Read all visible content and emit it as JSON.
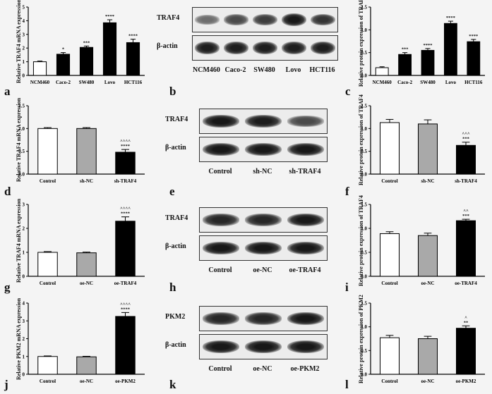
{
  "panel_letters": [
    "a",
    "b",
    "c",
    "d",
    "e",
    "f",
    "g",
    "h",
    "i",
    "j",
    "k",
    "l"
  ],
  "chart_data": [
    {
      "id": "a",
      "type": "bar",
      "ylabel": "Relative TRAF4 mRNA expression",
      "categories": [
        "NCM460",
        "Caco-2",
        "SW480",
        "Lovo",
        "HCT116"
      ],
      "values": [
        1.0,
        1.55,
        2.05,
        3.85,
        2.4
      ],
      "errors": [
        0.05,
        0.12,
        0.1,
        0.22,
        0.25
      ],
      "colors": [
        "#ffffff",
        "#000000",
        "#000000",
        "#000000",
        "#000000"
      ],
      "annotations": [
        "",
        "*",
        "***",
        "****",
        "****"
      ],
      "ylim": [
        0,
        5
      ],
      "yticks": [
        0,
        1,
        2,
        3,
        4,
        5
      ]
    },
    {
      "id": "c",
      "type": "bar",
      "ylabel": "Relative protein expression of TRAF4",
      "categories": [
        "NCM460",
        "Caco-2",
        "SW480",
        "Lovo",
        "HCT116"
      ],
      "values": [
        0.17,
        0.46,
        0.55,
        1.14,
        0.74
      ],
      "errors": [
        0.02,
        0.04,
        0.04,
        0.05,
        0.05
      ],
      "colors": [
        "#ffffff",
        "#000000",
        "#000000",
        "#000000",
        "#000000"
      ],
      "annotations": [
        "",
        "***",
        "****",
        "****",
        "****"
      ],
      "ylim": [
        0,
        1.5
      ],
      "yticks": [
        "0.0",
        "0.5",
        "1.0",
        "1.5"
      ]
    },
    {
      "id": "d",
      "type": "bar",
      "ylabel": "Relative TRAF4 mRNA expression",
      "categories": [
        "Control",
        "sh-NC",
        "sh-TRAF4"
      ],
      "values": [
        1.0,
        1.0,
        0.48
      ],
      "errors": [
        0.02,
        0.02,
        0.06
      ],
      "colors": [
        "#ffffff",
        "#a9a9a9",
        "#000000"
      ],
      "annotations": [
        "",
        "",
        "^^^^\n****"
      ],
      "ylim": [
        0,
        1.5
      ],
      "yticks": [
        "0.0",
        "0.5",
        "1.0",
        "1.5"
      ]
    },
    {
      "id": "f",
      "type": "bar",
      "ylabel": "Relative protein expression of TRAF4",
      "categories": [
        "Control",
        "sh-NC",
        "sh-TRAF4"
      ],
      "values": [
        1.13,
        1.1,
        0.63
      ],
      "errors": [
        0.07,
        0.09,
        0.07
      ],
      "colors": [
        "#ffffff",
        "#a9a9a9",
        "#000000"
      ],
      "annotations": [
        "",
        "",
        "^^^\n***"
      ],
      "ylim": [
        0,
        1.5
      ],
      "yticks": [
        "0.0",
        "0.5",
        "1.0",
        "1.5"
      ]
    },
    {
      "id": "g",
      "type": "bar",
      "ylabel": "Relative TRAF4 mRNA expression",
      "categories": [
        "Control",
        "oe-NC",
        "oe-TRAF4"
      ],
      "values": [
        1.0,
        0.98,
        2.3
      ],
      "errors": [
        0.03,
        0.03,
        0.18
      ],
      "colors": [
        "#ffffff",
        "#a9a9a9",
        "#000000"
      ],
      "annotations": [
        "",
        "",
        "^^^^\n****"
      ],
      "ylim": [
        0,
        3
      ],
      "yticks": [
        "0",
        "1",
        "2",
        "3"
      ]
    },
    {
      "id": "i",
      "type": "bar",
      "ylabel": "Relative protein expression of TRAF4",
      "categories": [
        "Control",
        "oe-NC",
        "oe-TRAF4"
      ],
      "values": [
        0.89,
        0.85,
        1.16
      ],
      "errors": [
        0.04,
        0.05,
        0.03
      ],
      "colors": [
        "#ffffff",
        "#a9a9a9",
        "#000000"
      ],
      "annotations": [
        "",
        "",
        "^^\n***"
      ],
      "ylim": [
        0,
        1.5
      ],
      "yticks": [
        "0.0",
        "0.5",
        "1.0",
        "1.5"
      ]
    },
    {
      "id": "j",
      "type": "bar",
      "ylabel": "Relative PKM2 mRNA expression",
      "categories": [
        "Control",
        "oe-NC",
        "oe-PKM2"
      ],
      "values": [
        1.0,
        0.98,
        3.25
      ],
      "errors": [
        0.03,
        0.03,
        0.22
      ],
      "colors": [
        "#ffffff",
        "#a9a9a9",
        "#000000"
      ],
      "annotations": [
        "",
        "",
        "^^^^\n****"
      ],
      "ylim": [
        0,
        4
      ],
      "yticks": [
        "0",
        "1",
        "2",
        "3",
        "4"
      ]
    },
    {
      "id": "l",
      "type": "bar",
      "ylabel": "Relative protein expression of PKM2",
      "categories": [
        "Control",
        "oe-NC",
        "oe-PKM2"
      ],
      "values": [
        0.77,
        0.75,
        0.97
      ],
      "errors": [
        0.05,
        0.05,
        0.05
      ],
      "colors": [
        "#ffffff",
        "#a9a9a9",
        "#000000"
      ],
      "annotations": [
        "",
        "",
        "^\n**"
      ],
      "ylim": [
        0,
        1.5
      ],
      "yticks": [
        "0.0",
        "0.5",
        "1.0",
        "1.5"
      ]
    }
  ],
  "blots": [
    {
      "id": "b",
      "rows": [
        "TRAF4",
        "β-actin"
      ],
      "lanes": [
        "NCM460",
        "Caco-2",
        "SW480",
        "Lovo",
        "HCT116"
      ],
      "intensity": [
        [
          0.35,
          0.6,
          0.7,
          0.95,
          0.75
        ],
        [
          0.9,
          0.9,
          0.9,
          0.9,
          0.9
        ]
      ]
    },
    {
      "id": "e",
      "rows": [
        "TRAF4",
        "β-actin"
      ],
      "lanes": [
        "Control",
        "sh-NC",
        "sh-TRAF4"
      ],
      "intensity": [
        [
          0.95,
          0.92,
          0.6
        ],
        [
          0.95,
          0.95,
          0.95
        ]
      ]
    },
    {
      "id": "h",
      "rows": [
        "TRAF4",
        "β-actin"
      ],
      "lanes": [
        "Control",
        "oe-NC",
        "oe-TRAF4"
      ],
      "intensity": [
        [
          0.85,
          0.85,
          0.95
        ],
        [
          0.95,
          0.95,
          0.95
        ]
      ]
    },
    {
      "id": "k",
      "rows": [
        "PKM2",
        "β-actin"
      ],
      "lanes": [
        "Control",
        "oe-NC",
        "oe-PKM2"
      ],
      "intensity": [
        [
          0.85,
          0.85,
          0.95
        ],
        [
          0.95,
          0.95,
          0.95
        ]
      ]
    }
  ]
}
